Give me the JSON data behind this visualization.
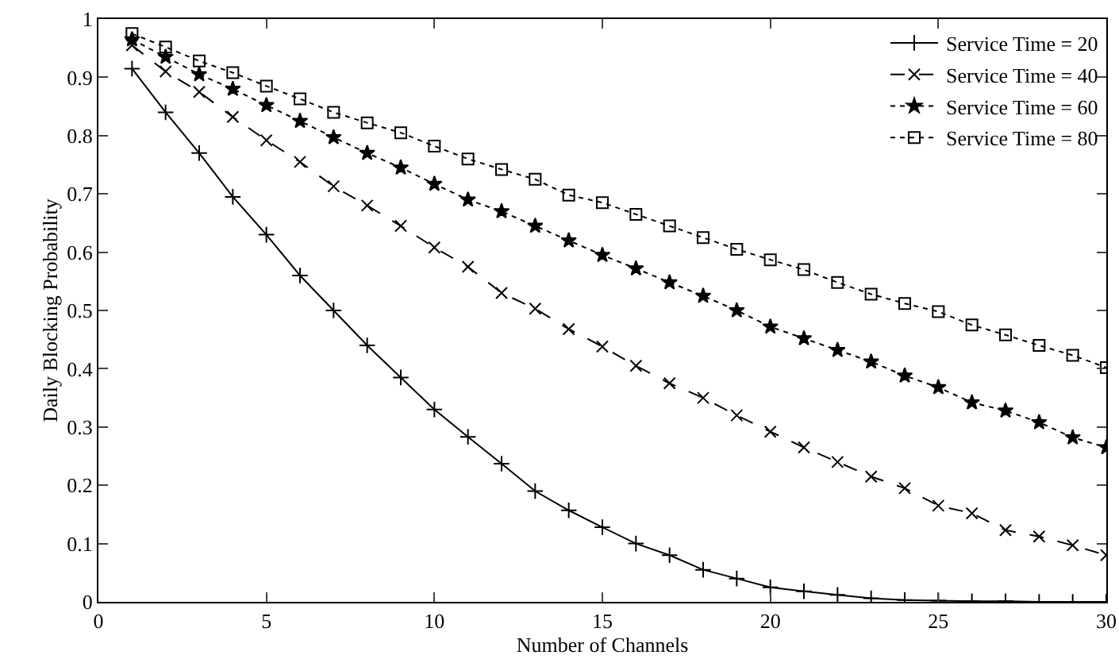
{
  "chart_data": {
    "type": "line",
    "xlabel": "Number of Channels",
    "ylabel": "Daily Blocking Probability",
    "x": [
      1,
      2,
      3,
      4,
      5,
      6,
      7,
      8,
      9,
      10,
      11,
      12,
      13,
      14,
      15,
      16,
      17,
      18,
      19,
      20,
      21,
      22,
      23,
      24,
      25,
      26,
      27,
      28,
      29,
      30
    ],
    "series": [
      {
        "name": "Service Time = 20",
        "color": "#000000",
        "marker": "cross",
        "line_style": "solid",
        "values": [
          0.915,
          0.84,
          0.77,
          0.695,
          0.63,
          0.56,
          0.5,
          0.44,
          0.385,
          0.33,
          0.283,
          0.237,
          0.19,
          0.157,
          0.128,
          0.1,
          0.08,
          0.055,
          0.04,
          0.025,
          0.018,
          0.012,
          0.006,
          0.003,
          0.002,
          0.001,
          0.001,
          0,
          0,
          0
        ]
      },
      {
        "name": "Service Time = 40",
        "color": "#000000",
        "marker": "x",
        "line_style": "dashed",
        "values": [
          0.955,
          0.91,
          0.875,
          0.832,
          0.792,
          0.755,
          0.713,
          0.68,
          0.645,
          0.608,
          0.575,
          0.53,
          0.503,
          0.468,
          0.438,
          0.405,
          0.375,
          0.35,
          0.32,
          0.292,
          0.265,
          0.24,
          0.215,
          0.195,
          0.165,
          0.152,
          0.123,
          0.112,
          0.097,
          0.08
        ]
      },
      {
        "name": "Service Time = 60",
        "color": "#000000",
        "marker": "star",
        "line_style": "dotted",
        "values": [
          0.965,
          0.935,
          0.905,
          0.88,
          0.852,
          0.825,
          0.797,
          0.77,
          0.745,
          0.717,
          0.69,
          0.67,
          0.645,
          0.62,
          0.595,
          0.572,
          0.548,
          0.525,
          0.5,
          0.472,
          0.452,
          0.432,
          0.412,
          0.388,
          0.368,
          0.342,
          0.328,
          0.308,
          0.282,
          0.265
        ]
      },
      {
        "name": "Service Time = 80",
        "color": "#000000",
        "marker": "square",
        "line_style": "dotted",
        "values": [
          0.975,
          0.952,
          0.928,
          0.908,
          0.885,
          0.863,
          0.84,
          0.822,
          0.805,
          0.782,
          0.76,
          0.742,
          0.725,
          0.698,
          0.685,
          0.665,
          0.645,
          0.625,
          0.605,
          0.587,
          0.57,
          0.548,
          0.528,
          0.512,
          0.498,
          0.475,
          0.458,
          0.44,
          0.423,
          0.402
        ]
      }
    ],
    "xlim": [
      0,
      30
    ],
    "xticks": [
      0,
      5,
      10,
      15,
      20,
      25,
      30
    ],
    "ylim": [
      0,
      1
    ],
    "yticks": [
      0,
      0.1,
      0.2,
      0.3,
      0.4,
      0.5,
      0.6,
      0.7,
      0.8,
      0.9,
      1
    ],
    "grid": false,
    "legend": "top right"
  }
}
